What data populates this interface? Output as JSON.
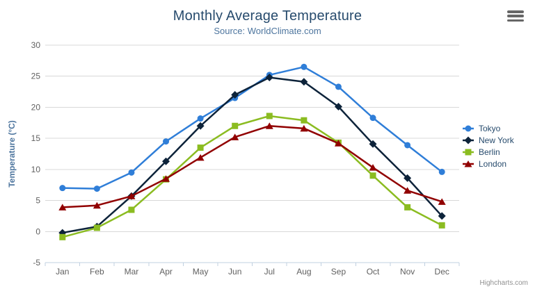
{
  "chart": {
    "credits_label": "Highcharts.com",
    "context_menu_icon": "hamburger-icon"
  },
  "colors": {
    "title_text": "#274b6d",
    "subtitle_text": "#4d759e",
    "axis_title_text": "#4d759e",
    "tick_label_text": "#606060",
    "gridline": "#d8d8d8",
    "axis_line": "#c0d0e0",
    "legend_text": "#274b6d",
    "credits_text": "#909090",
    "burger_icon": "#666666"
  },
  "chart_data": {
    "type": "line",
    "title": "Monthly Average Temperature",
    "subtitle": "Source: WorldClimate.com",
    "xlabel": "",
    "ylabel": "Temperature (°C)",
    "ylim": [
      -5,
      30
    ],
    "yticks": [
      -5,
      0,
      5,
      10,
      15,
      20,
      25,
      30
    ],
    "grid": true,
    "legend_position": "right",
    "categories": [
      "Jan",
      "Feb",
      "Mar",
      "Apr",
      "May",
      "Jun",
      "Jul",
      "Aug",
      "Sep",
      "Oct",
      "Nov",
      "Dec"
    ],
    "series": [
      {
        "name": "Tokyo",
        "color": "#2f7ed8",
        "marker": "circle",
        "values": [
          7.0,
          6.9,
          9.5,
          14.5,
          18.2,
          21.5,
          25.2,
          26.5,
          23.3,
          18.3,
          13.9,
          9.6
        ]
      },
      {
        "name": "New York",
        "color": "#0d233a",
        "marker": "diamond",
        "values": [
          -0.2,
          0.8,
          5.7,
          11.3,
          17.0,
          22.0,
          24.8,
          24.1,
          20.1,
          14.1,
          8.6,
          2.5
        ]
      },
      {
        "name": "Berlin",
        "color": "#8bbc21",
        "marker": "square",
        "values": [
          -0.9,
          0.6,
          3.5,
          8.4,
          13.5,
          17.0,
          18.6,
          17.9,
          14.3,
          9.0,
          3.9,
          1.0
        ]
      },
      {
        "name": "London",
        "color": "#910000",
        "marker": "triangle",
        "values": [
          3.9,
          4.2,
          5.7,
          8.5,
          11.9,
          15.2,
          17.0,
          16.6,
          14.2,
          10.3,
          6.6,
          4.8
        ]
      }
    ]
  }
}
